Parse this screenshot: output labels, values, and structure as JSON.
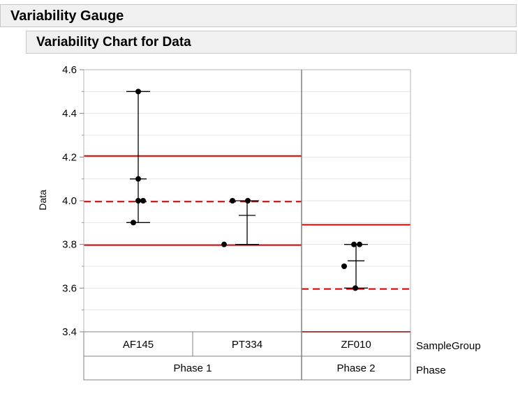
{
  "outline": {
    "title": "Variability Gauge",
    "subtitle": "Variability Chart for Data"
  },
  "colors": {
    "limit": "#d40000",
    "frame": "#808080",
    "grid": "#e6e6e6",
    "header_bg": "#f0f0f0"
  },
  "chart_data": {
    "type": "scatter",
    "ylabel": "Data",
    "ylim": [
      3.4,
      4.6
    ],
    "yticks": [
      "3.4",
      "3.6",
      "3.8",
      "4.0",
      "4.2",
      "4.4",
      "4.6"
    ],
    "grid": true,
    "x_levels": {
      "inner_label": "SampleGroup",
      "outer_label": "Phase",
      "phases": [
        {
          "name": "Phase 1",
          "groups": [
            "AF145",
            "PT334"
          ]
        },
        {
          "name": "Phase 2",
          "groups": [
            "ZF010"
          ]
        }
      ]
    },
    "groups": [
      {
        "name": "AF145",
        "phase": "Phase 1",
        "points": [
          4.5,
          4.1,
          4.0,
          4.0,
          3.9
        ],
        "min": 3.9,
        "max": 4.5,
        "mean": 4.1
      },
      {
        "name": "PT334",
        "phase": "Phase 1",
        "points": [
          4.0,
          4.0,
          3.8
        ],
        "min": 3.8,
        "max": 4.0,
        "mean": 3.933
      },
      {
        "name": "ZF010",
        "phase": "Phase 2",
        "points": [
          3.8,
          3.8,
          3.7,
          3.6
        ],
        "min": 3.6,
        "max": 3.8,
        "mean": 3.725
      }
    ],
    "limits": [
      {
        "phase": "Phase 1",
        "ucl": 4.205,
        "center": 3.996,
        "lcl": 3.797
      },
      {
        "phase": "Phase 2",
        "ucl": 3.89,
        "center": 3.596,
        "lcl": 3.4
      }
    ]
  }
}
